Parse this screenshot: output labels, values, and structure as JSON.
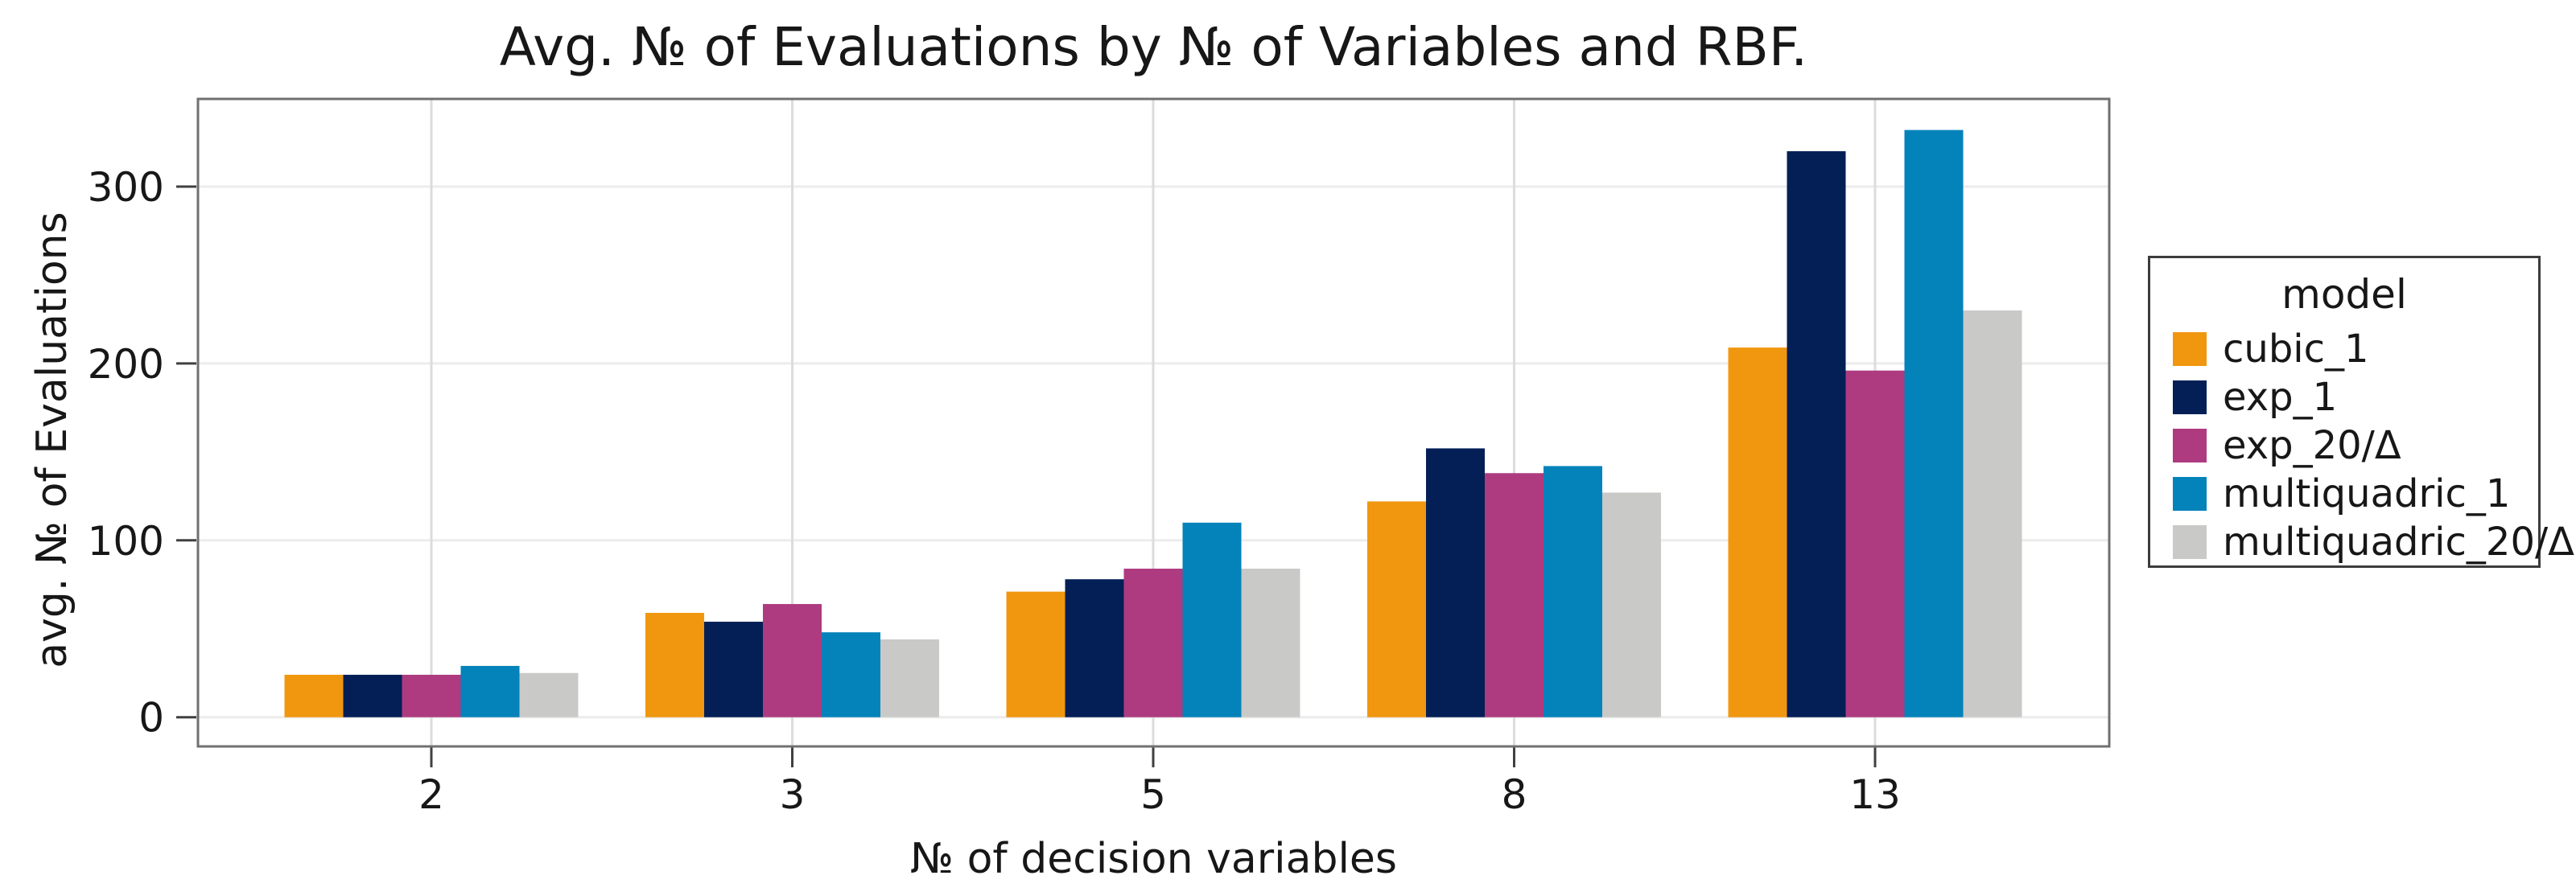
{
  "chart_data": {
    "type": "bar",
    "title": "Avg. № of Evaluations by № of Variables and RBF.",
    "xlabel": "№ of decision variables",
    "ylabel": "avg. № of Evaluations",
    "categories": [
      "2",
      "3",
      "5",
      "8",
      "13"
    ],
    "series": [
      {
        "name": "cubic_1",
        "color": "#F0970F",
        "values": [
          24,
          59,
          71,
          122,
          209
        ]
      },
      {
        "name": "exp_1",
        "color": "#031F56",
        "values": [
          24,
          54,
          78,
          152,
          320
        ]
      },
      {
        "name": "exp_20/Δ",
        "color": "#AE3B80",
        "values": [
          24,
          64,
          84,
          138,
          196
        ]
      },
      {
        "name": "multiquadric_1",
        "color": "#0482BA",
        "values": [
          29,
          48,
          110,
          142,
          332
        ]
      },
      {
        "name": "multiquadric_20/Δ",
        "color": "#C9C9C7",
        "values": [
          25,
          44,
          84,
          127,
          230
        ]
      }
    ],
    "yticks": [
      0,
      100,
      200,
      300
    ],
    "ytick_labels": [
      "0",
      "100",
      "200",
      "300"
    ],
    "ylim": [
      -17,
      350
    ],
    "grid": true,
    "legend": {
      "title": "model",
      "position": "right"
    }
  }
}
